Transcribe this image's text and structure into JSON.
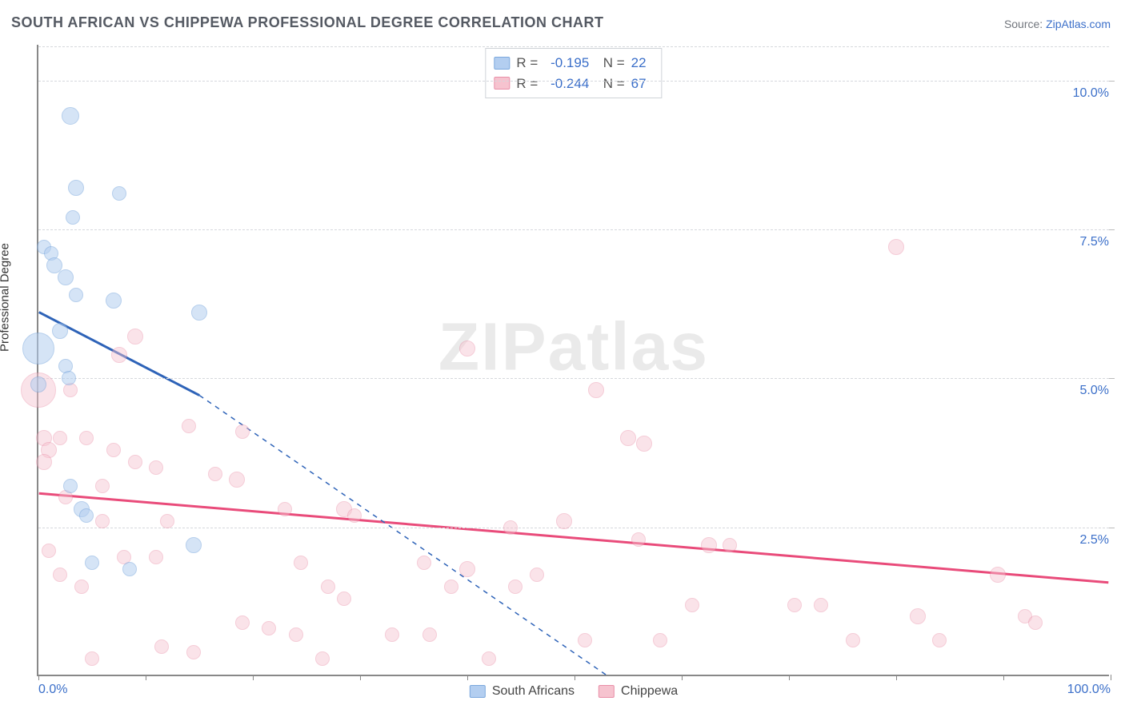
{
  "title": "SOUTH AFRICAN VS CHIPPEWA PROFESSIONAL DEGREE CORRELATION CHART",
  "source_prefix": "Source: ",
  "source_link": "ZipAtlas.com",
  "ylabel": "Professional Degree",
  "watermark": {
    "zip": "ZIP",
    "atlas": "atlas"
  },
  "chart": {
    "type": "scatter",
    "xlim": [
      0,
      100
    ],
    "ylim": [
      0,
      10.6
    ],
    "background_color": "#ffffff",
    "grid_color": "#d5d8dc",
    "axis_tick_color": "#888888",
    "tick_label_color": "#3b6fc9",
    "tick_fontsize": 16,
    "xticks_minor": [
      0,
      10,
      20,
      30,
      40,
      50,
      60,
      70,
      80,
      90,
      100
    ],
    "xticks_labeled": [
      {
        "x": 0,
        "label": "0.0%"
      },
      {
        "x": 100,
        "label": "100.0%"
      }
    ],
    "yticks": [
      {
        "y": 2.5,
        "label": "2.5%"
      },
      {
        "y": 5.0,
        "label": "5.0%"
      },
      {
        "y": 7.5,
        "label": "7.5%"
      },
      {
        "y": 10.0,
        "label": "10.0%"
      }
    ]
  },
  "series": {
    "south_africans": {
      "label": "South Africans",
      "fill": "#b3cef0",
      "stroke": "#7ba8dd",
      "fill_opacity": 0.55,
      "trend_color": "#2e63b8",
      "trend_width": 3,
      "point_radius": 10,
      "R": "-0.195",
      "N": "22",
      "trend_start": {
        "x": 0,
        "y": 6.1
      },
      "trend_solid_end": {
        "x": 15,
        "y": 4.7
      },
      "trend_end": {
        "x": 53,
        "y": 0
      },
      "points": [
        {
          "x": 3.0,
          "y": 9.4,
          "r": 11
        },
        {
          "x": 3.5,
          "y": 8.2,
          "r": 10
        },
        {
          "x": 7.5,
          "y": 8.1,
          "r": 9
        },
        {
          "x": 3.2,
          "y": 7.7,
          "r": 9
        },
        {
          "x": 0.5,
          "y": 7.2,
          "r": 9
        },
        {
          "x": 1.2,
          "y": 7.1,
          "r": 9
        },
        {
          "x": 1.5,
          "y": 6.9,
          "r": 10
        },
        {
          "x": 2.5,
          "y": 6.7,
          "r": 10
        },
        {
          "x": 3.5,
          "y": 6.4,
          "r": 9
        },
        {
          "x": 7.0,
          "y": 6.3,
          "r": 10
        },
        {
          "x": 15.0,
          "y": 6.1,
          "r": 10
        },
        {
          "x": 2.0,
          "y": 5.8,
          "r": 10
        },
        {
          "x": 0.0,
          "y": 5.5,
          "r": 20
        },
        {
          "x": 2.5,
          "y": 5.2,
          "r": 9
        },
        {
          "x": 2.8,
          "y": 5.0,
          "r": 9
        },
        {
          "x": 0.0,
          "y": 4.9,
          "r": 10
        },
        {
          "x": 3.0,
          "y": 3.2,
          "r": 9
        },
        {
          "x": 4.0,
          "y": 2.8,
          "r": 10
        },
        {
          "x": 4.5,
          "y": 2.7,
          "r": 9
        },
        {
          "x": 14.5,
          "y": 2.2,
          "r": 10
        },
        {
          "x": 5.0,
          "y": 1.9,
          "r": 9
        },
        {
          "x": 8.5,
          "y": 1.8,
          "r": 9
        }
      ]
    },
    "chippewa": {
      "label": "Chippewa",
      "fill": "#f6c3cf",
      "stroke": "#e98fa8",
      "fill_opacity": 0.45,
      "trend_color": "#e94b7a",
      "trend_width": 3,
      "point_radius": 10,
      "R": "-0.244",
      "N": "67",
      "trend_start": {
        "x": 0,
        "y": 3.05
      },
      "trend_end": {
        "x": 100,
        "y": 1.55
      },
      "points": [
        {
          "x": 80.0,
          "y": 7.2,
          "r": 10
        },
        {
          "x": 9.0,
          "y": 5.7,
          "r": 10
        },
        {
          "x": 40.0,
          "y": 5.5,
          "r": 10
        },
        {
          "x": 7.5,
          "y": 5.4,
          "r": 10
        },
        {
          "x": 0.0,
          "y": 4.8,
          "r": 22
        },
        {
          "x": 52.0,
          "y": 4.8,
          "r": 10
        },
        {
          "x": 3.0,
          "y": 4.8,
          "r": 9
        },
        {
          "x": 14.0,
          "y": 4.2,
          "r": 9
        },
        {
          "x": 19.0,
          "y": 4.1,
          "r": 9
        },
        {
          "x": 0.5,
          "y": 4.0,
          "r": 10
        },
        {
          "x": 2.0,
          "y": 4.0,
          "r": 9
        },
        {
          "x": 4.5,
          "y": 4.0,
          "r": 9
        },
        {
          "x": 55.0,
          "y": 4.0,
          "r": 10
        },
        {
          "x": 56.5,
          "y": 3.9,
          "r": 10
        },
        {
          "x": 1.0,
          "y": 3.8,
          "r": 10
        },
        {
          "x": 7.0,
          "y": 3.8,
          "r": 9
        },
        {
          "x": 0.5,
          "y": 3.6,
          "r": 10
        },
        {
          "x": 9.0,
          "y": 3.6,
          "r": 9
        },
        {
          "x": 11.0,
          "y": 3.5,
          "r": 9
        },
        {
          "x": 16.5,
          "y": 3.4,
          "r": 9
        },
        {
          "x": 18.5,
          "y": 3.3,
          "r": 10
        },
        {
          "x": 6.0,
          "y": 3.2,
          "r": 9
        },
        {
          "x": 2.5,
          "y": 3.0,
          "r": 9
        },
        {
          "x": 23.0,
          "y": 2.8,
          "r": 9
        },
        {
          "x": 28.5,
          "y": 2.8,
          "r": 10
        },
        {
          "x": 29.5,
          "y": 2.7,
          "r": 9
        },
        {
          "x": 6.0,
          "y": 2.6,
          "r": 9
        },
        {
          "x": 12.0,
          "y": 2.6,
          "r": 9
        },
        {
          "x": 49.0,
          "y": 2.6,
          "r": 10
        },
        {
          "x": 44.0,
          "y": 2.5,
          "r": 9
        },
        {
          "x": 56.0,
          "y": 2.3,
          "r": 9
        },
        {
          "x": 62.5,
          "y": 2.2,
          "r": 10
        },
        {
          "x": 64.5,
          "y": 2.2,
          "r": 9
        },
        {
          "x": 8.0,
          "y": 2.0,
          "r": 9
        },
        {
          "x": 11.0,
          "y": 2.0,
          "r": 9
        },
        {
          "x": 24.5,
          "y": 1.9,
          "r": 9
        },
        {
          "x": 36.0,
          "y": 1.9,
          "r": 9
        },
        {
          "x": 40.0,
          "y": 1.8,
          "r": 10
        },
        {
          "x": 46.5,
          "y": 1.7,
          "r": 9
        },
        {
          "x": 89.5,
          "y": 1.7,
          "r": 10
        },
        {
          "x": 27.0,
          "y": 1.5,
          "r": 9
        },
        {
          "x": 38.5,
          "y": 1.5,
          "r": 9
        },
        {
          "x": 44.5,
          "y": 1.5,
          "r": 9
        },
        {
          "x": 28.5,
          "y": 1.3,
          "r": 9
        },
        {
          "x": 61.0,
          "y": 1.2,
          "r": 9
        },
        {
          "x": 70.5,
          "y": 1.2,
          "r": 9
        },
        {
          "x": 73.0,
          "y": 1.2,
          "r": 9
        },
        {
          "x": 82.0,
          "y": 1.0,
          "r": 10
        },
        {
          "x": 92.0,
          "y": 1.0,
          "r": 9
        },
        {
          "x": 93.0,
          "y": 0.9,
          "r": 9
        },
        {
          "x": 19.0,
          "y": 0.9,
          "r": 9
        },
        {
          "x": 21.5,
          "y": 0.8,
          "r": 9
        },
        {
          "x": 24.0,
          "y": 0.7,
          "r": 9
        },
        {
          "x": 33.0,
          "y": 0.7,
          "r": 9
        },
        {
          "x": 36.5,
          "y": 0.7,
          "r": 9
        },
        {
          "x": 51.0,
          "y": 0.6,
          "r": 9
        },
        {
          "x": 58.0,
          "y": 0.6,
          "r": 9
        },
        {
          "x": 76.0,
          "y": 0.6,
          "r": 9
        },
        {
          "x": 84.0,
          "y": 0.6,
          "r": 9
        },
        {
          "x": 11.5,
          "y": 0.5,
          "r": 9
        },
        {
          "x": 14.5,
          "y": 0.4,
          "r": 9
        },
        {
          "x": 26.5,
          "y": 0.3,
          "r": 9
        },
        {
          "x": 42.0,
          "y": 0.3,
          "r": 9
        },
        {
          "x": 5.0,
          "y": 0.3,
          "r": 9
        },
        {
          "x": 2.0,
          "y": 1.7,
          "r": 9
        },
        {
          "x": 4.0,
          "y": 1.5,
          "r": 9
        },
        {
          "x": 1.0,
          "y": 2.1,
          "r": 9
        }
      ]
    }
  }
}
